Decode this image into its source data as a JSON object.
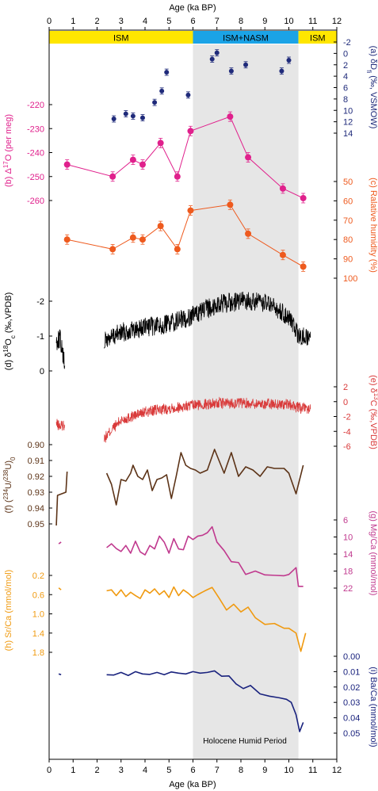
{
  "colors": {
    "ism_band": "#FFE600",
    "nasm_band": "#1BA3E6",
    "humid_shade": "#E6E6E6",
    "dD": "#1F2A7A",
    "d17O": "#E0208C",
    "rh": "#EE5A1E",
    "d18O": "#000000",
    "d13C": "#D93A3A",
    "u": "#5C3317",
    "mg": "#C0398E",
    "sr": "#F09A10",
    "ba": "#1A237E"
  },
  "chart_data": {
    "type": "line",
    "x_axis": {
      "label": "Age (ka BP)",
      "range": [
        0,
        12
      ],
      "ticks": [
        "0",
        "1",
        "2",
        "3",
        "4",
        "5",
        "6",
        "7",
        "8",
        "9",
        "10",
        "11",
        "12"
      ]
    },
    "periods": [
      {
        "label": "ISM",
        "from": 0,
        "to": 6.0,
        "color": "#FFE600"
      },
      {
        "label": "ISM+NASM",
        "from": 6.0,
        "to": 10.4,
        "color": "#1BA3E6"
      },
      {
        "label": "ISM",
        "from": 10.4,
        "to": 12,
        "color": "#FFE600"
      }
    ],
    "humid_period": {
      "label": "Holocene Humid Period",
      "from": 6.0,
      "to": 10.4
    },
    "panels": [
      {
        "id": "a",
        "label": "(a) δD",
        "label_sub": "fi",
        "label_tail": " (‰, VSMOW)",
        "side": "right",
        "color": "#1F2A7A",
        "style": "points",
        "inverted": true,
        "tick_labels": [
          "-2",
          "0",
          "2",
          "4",
          "6",
          "8",
          "10",
          "12",
          "14"
        ],
        "tick_values": [
          -2,
          0,
          2,
          4,
          6,
          8,
          10,
          12,
          14
        ],
        "x": [
          2.7,
          3.2,
          3.5,
          3.9,
          4.4,
          4.7,
          4.9,
          5.8,
          6.8,
          7.0,
          7.6,
          8.2,
          9.7,
          10.0
        ],
        "y": [
          11.5,
          10.6,
          11.0,
          11.3,
          8.6,
          6.6,
          3.3,
          7.3,
          1.0,
          -0.1,
          3.1,
          2.0,
          3.1,
          1.2
        ]
      },
      {
        "id": "b",
        "label": "(b) Δ",
        "label_sup": "17",
        "label_tail": "O (per meg)",
        "side": "left",
        "color": "#E0208C",
        "style": "points-line",
        "inverted": false,
        "tick_labels": [
          "-220",
          "-230",
          "-240",
          "-250",
          "-260"
        ],
        "tick_values": [
          -220,
          -230,
          -240,
          -250,
          -260
        ],
        "x": [
          0.75,
          2.65,
          3.5,
          3.9,
          4.65,
          5.35,
          5.9,
          7.55,
          8.3,
          9.75,
          10.6
        ],
        "y": [
          -245,
          -250,
          -243,
          -245,
          -236,
          -250,
          -231,
          -225,
          -242,
          -255,
          -259
        ]
      },
      {
        "id": "c",
        "label": "(c) Ralative humidity (%)",
        "side": "right",
        "color": "#EE5A1E",
        "style": "points-line",
        "inverted": true,
        "tick_labels": [
          "50",
          "60",
          "70",
          "80",
          "90",
          "100"
        ],
        "tick_values": [
          50,
          60,
          70,
          80,
          90,
          100
        ],
        "x": [
          0.75,
          2.65,
          3.5,
          3.9,
          4.65,
          5.35,
          5.9,
          7.55,
          8.3,
          9.75,
          10.6
        ],
        "y": [
          80,
          85,
          79,
          80,
          73,
          85,
          65,
          62,
          77,
          88,
          94
        ]
      },
      {
        "id": "d",
        "label": "(d) δ",
        "label_sup": "18",
        "label_tail": "O",
        "label_sub": "c",
        "label_tail2": " (‰,VPDB)",
        "side": "left",
        "color": "#000000",
        "style": "dense",
        "inverted": true,
        "tick_labels": [
          "-2",
          "-1",
          "0"
        ],
        "tick_values": [
          -2,
          -1,
          0
        ],
        "series": [
          {
            "x": [
              0.3,
              0.45,
              0.65
            ],
            "y": [
              -0.85,
              -0.95,
              -0.15
            ]
          },
          {
            "x": [
              2.3,
              3,
              4,
              5,
              6,
              7,
              8,
              9,
              10,
              10.4,
              10.9
            ],
            "y": [
              -0.85,
              -1.1,
              -1.25,
              -1.35,
              -1.6,
              -1.9,
              -2.0,
              -1.95,
              -1.55,
              -1.0,
              -0.95
            ]
          }
        ]
      },
      {
        "id": "e",
        "label": "(e) δ",
        "label_sup": "13",
        "label_tail": "C (‰,VPDB)",
        "side": "right",
        "color": "#D93A3A",
        "style": "dense",
        "inverted": false,
        "tick_labels": [
          "2",
          "0",
          "-2",
          "-4",
          "-6"
        ],
        "tick_values": [
          2,
          0,
          -2,
          -4,
          -6
        ],
        "series": [
          {
            "x": [
              0.3,
              0.45,
              0.65
            ],
            "y": [
              -3.0,
              -3.3,
              -3.1
            ]
          },
          {
            "x": [
              2.3,
              2.6,
              3,
              4,
              5,
              6,
              7,
              8,
              9,
              10,
              10.5,
              10.9
            ],
            "y": [
              -5.0,
              -3.8,
              -2.5,
              -1.4,
              -0.9,
              -0.5,
              -0.2,
              -0.2,
              -0.3,
              -0.4,
              -0.9,
              -1.0
            ]
          }
        ]
      },
      {
        "id": "f",
        "label": "(f) (",
        "label_sup": "234",
        "label_tail": "U/",
        "label_sup2": "238",
        "label_tail2": "U)",
        "label_sub": "0",
        "side": "left",
        "color": "#5C3317",
        "style": "line",
        "inverted": true,
        "tick_labels": [
          "0.90",
          "0.91",
          "0.92",
          "0.93",
          "0.94",
          "0.95"
        ],
        "tick_values": [
          0.9,
          0.91,
          0.92,
          0.93,
          0.94,
          0.95
        ],
        "series": [
          {
            "x": [
              0.3,
              0.35,
              0.7,
              0.75
            ],
            "y": [
              0.951,
              0.932,
              0.93,
              0.917
            ]
          },
          {
            "x": [
              2.4,
              2.6,
              2.8,
              3.0,
              3.2,
              3.4,
              3.5,
              3.7,
              3.9,
              4.1,
              4.3,
              4.5,
              4.7,
              4.9,
              5.1,
              5.3,
              5.5,
              5.7,
              5.9,
              6.1,
              6.3,
              6.6,
              6.9,
              7.3,
              7.6,
              7.9,
              8.2,
              8.5,
              8.8,
              9.1,
              9.4,
              9.8,
              10.0,
              10.3,
              10.6
            ],
            "y": [
              0.918,
              0.925,
              0.938,
              0.922,
              0.923,
              0.918,
              0.913,
              0.92,
              0.922,
              0.916,
              0.929,
              0.922,
              0.921,
              0.919,
              0.934,
              0.92,
              0.905,
              0.913,
              0.915,
              0.916,
              0.918,
              0.916,
              0.903,
              0.918,
              0.905,
              0.92,
              0.914,
              0.916,
              0.92,
              0.914,
              0.915,
              0.915,
              0.918,
              0.931,
              0.913
            ]
          }
        ]
      },
      {
        "id": "g",
        "label": "(g) Mg/Ca (mmol/mol)",
        "side": "right",
        "color": "#C0398E",
        "style": "line",
        "inverted": true,
        "tick_labels": [
          "6",
          "10",
          "14",
          "18",
          "22"
        ],
        "tick_values": [
          6,
          10,
          14,
          18,
          22
        ],
        "series": [
          {
            "x": [
              0.4,
              0.5
            ],
            "y": [
              11.6,
              11.2
            ]
          },
          {
            "x": [
              2.4,
              2.6,
              2.8,
              3.0,
              3.2,
              3.4,
              3.6,
              3.8,
              4.0,
              4.2,
              4.4,
              4.6,
              4.8,
              5.0,
              5.2,
              5.4,
              5.6,
              5.8,
              6.0,
              6.2,
              6.4,
              6.6,
              6.8,
              7.0,
              7.3,
              7.6,
              7.9,
              8.2,
              8.6,
              9.0,
              9.4,
              9.8,
              10.0,
              10.3,
              10.4,
              10.6
            ],
            "y": [
              12.5,
              11.6,
              12.7,
              13.4,
              12.0,
              13.8,
              11.0,
              13.5,
              14.2,
              12.0,
              12.8,
              9.8,
              11.2,
              13.8,
              10.4,
              12.8,
              13.0,
              9.8,
              10.6,
              9.8,
              9.6,
              9.0,
              7.6,
              11.2,
              13.2,
              15.8,
              16.0,
              18.8,
              18.0,
              18.9,
              19.0,
              19.1,
              18.8,
              17.2,
              21.6,
              21.6
            ]
          }
        ]
      },
      {
        "id": "h",
        "label": "(h) Sr/Ca (mmol/mol)",
        "side": "left",
        "color": "#F09A10",
        "style": "line",
        "inverted": true,
        "tick_labels": [
          "0.2",
          "0.6",
          "1.0",
          "1.4",
          "1.8"
        ],
        "tick_values": [
          0.2,
          0.6,
          1.0,
          1.4,
          1.8
        ],
        "series": [
          {
            "x": [
              0.4,
              0.5
            ],
            "y": [
              0.46,
              0.5
            ]
          },
          {
            "x": [
              2.4,
              2.6,
              2.8,
              3.0,
              3.2,
              3.4,
              3.6,
              3.8,
              4.0,
              4.2,
              4.4,
              4.6,
              4.8,
              5.0,
              5.2,
              5.4,
              5.6,
              5.8,
              6.0,
              6.2,
              6.5,
              6.8,
              7.1,
              7.4,
              7.7,
              8.0,
              8.3,
              8.6,
              9.0,
              9.4,
              9.8,
              10.0,
              10.3,
              10.5,
              10.7
            ],
            "y": [
              0.52,
              0.5,
              0.62,
              0.5,
              0.64,
              0.55,
              0.62,
              0.68,
              0.5,
              0.57,
              0.48,
              0.6,
              0.52,
              0.66,
              0.44,
              0.62,
              0.5,
              0.57,
              0.66,
              0.6,
              0.52,
              0.45,
              0.68,
              0.92,
              0.8,
              0.96,
              0.86,
              1.08,
              1.22,
              1.2,
              1.3,
              1.3,
              1.4,
              1.78,
              1.4
            ]
          }
        ]
      },
      {
        "id": "i",
        "label": "(i) Ba/Ca (mmol/mol)",
        "side": "right",
        "color": "#1A237E",
        "style": "line",
        "inverted": true,
        "tick_labels": [
          "0.00",
          "0.01",
          "0.02",
          "0.03",
          "0.04",
          "0.05"
        ],
        "tick_values": [
          0.0,
          0.01,
          0.02,
          0.03,
          0.04,
          0.05
        ],
        "series": [
          {
            "x": [
              0.4,
              0.5
            ],
            "y": [
              0.0115,
              0.012
            ]
          },
          {
            "x": [
              2.4,
              2.7,
              3.0,
              3.3,
              3.6,
              3.9,
              4.2,
              4.5,
              4.8,
              5.1,
              5.4,
              5.7,
              6.0,
              6.3,
              6.6,
              6.9,
              7.2,
              7.5,
              7.8,
              8.1,
              8.4,
              8.8,
              9.2,
              9.6,
              9.9,
              10.1,
              10.3,
              10.45,
              10.6
            ],
            "y": [
              0.012,
              0.0122,
              0.0105,
              0.0125,
              0.01,
              0.0115,
              0.0118,
              0.0105,
              0.012,
              0.0102,
              0.011,
              0.0115,
              0.01,
              0.011,
              0.0105,
              0.0095,
              0.013,
              0.0128,
              0.018,
              0.021,
              0.019,
              0.0245,
              0.026,
              0.027,
              0.028,
              0.03,
              0.038,
              0.049,
              0.043
            ]
          }
        ]
      }
    ]
  }
}
